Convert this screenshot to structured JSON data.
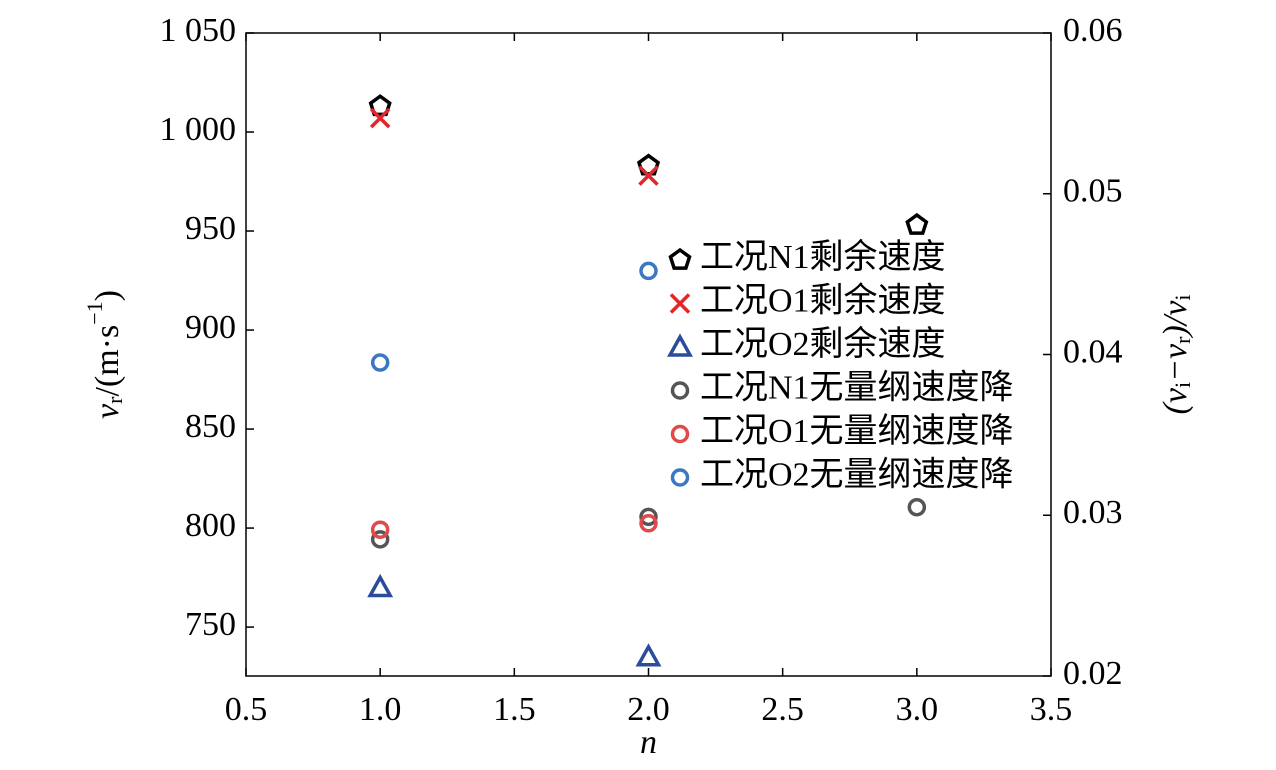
{
  "chart_data": {
    "type": "scatter",
    "xlabel": "n",
    "ylabel": [
      "v",
      "r",
      "/(m·s",
      "−1",
      ")"
    ],
    "y2label": [
      "(v",
      "i",
      "−v",
      "r",
      ")/v",
      "i"
    ],
    "xlim": [
      0.5,
      3.5
    ],
    "xticks": [
      0.5,
      {
        "value": 1,
        "label": "1.0"
      },
      1.5,
      {
        "value": 2,
        "label": "2.0"
      },
      2.5,
      {
        "value": 3,
        "label": "3.0"
      },
      3.5
    ],
    "ylim": [
      725.3,
      1050
    ],
    "yticks": [
      {
        "value": 750,
        "label": "750"
      },
      800,
      850,
      900,
      950,
      {
        "value": 1000,
        "label": "1 000"
      },
      {
        "value": 1050,
        "label": "1 050"
      }
    ],
    "y2lim": [
      0.02,
      0.06
    ],
    "y2ticks": [
      0.02,
      0.03,
      0.04,
      0.05,
      0.06
    ],
    "legend": "right",
    "series": [
      {
        "name": "工况N1剩余速度",
        "color": "#000000",
        "marker": "pentagon",
        "x": [
          1,
          2,
          3
        ],
        "values": [
          1013,
          983,
          953
        ]
      },
      {
        "name": "工况O1剩余速度",
        "color": "#e3262a",
        "marker": "x",
        "x": [
          1,
          2
        ],
        "values": [
          1007,
          978
        ]
      },
      {
        "name": "工况O2剩余速度",
        "color": "#2b4c9b",
        "marker": "triangle",
        "x": [
          1,
          2
        ],
        "values": [
          770,
          735
        ]
      },
      {
        "name": "工况N1无量纲速度降",
        "color": "#555555",
        "marker": "circle",
        "axis": "y2",
        "x": [
          1,
          2,
          3
        ],
        "values": [
          0.0285,
          0.0299,
          0.0305
        ]
      },
      {
        "name": "工况O1无量纲速度降",
        "color": "#e04a4a",
        "marker": "circle",
        "axis": "y2",
        "x": [
          1,
          2
        ],
        "values": [
          0.0291,
          0.0295
        ]
      },
      {
        "name": "工况O2无量纲速度降",
        "color": "#3a78c0",
        "marker": "circle",
        "axis": "y2",
        "x": [
          1,
          2
        ],
        "values": [
          0.0395,
          0.0452
        ]
      }
    ]
  }
}
